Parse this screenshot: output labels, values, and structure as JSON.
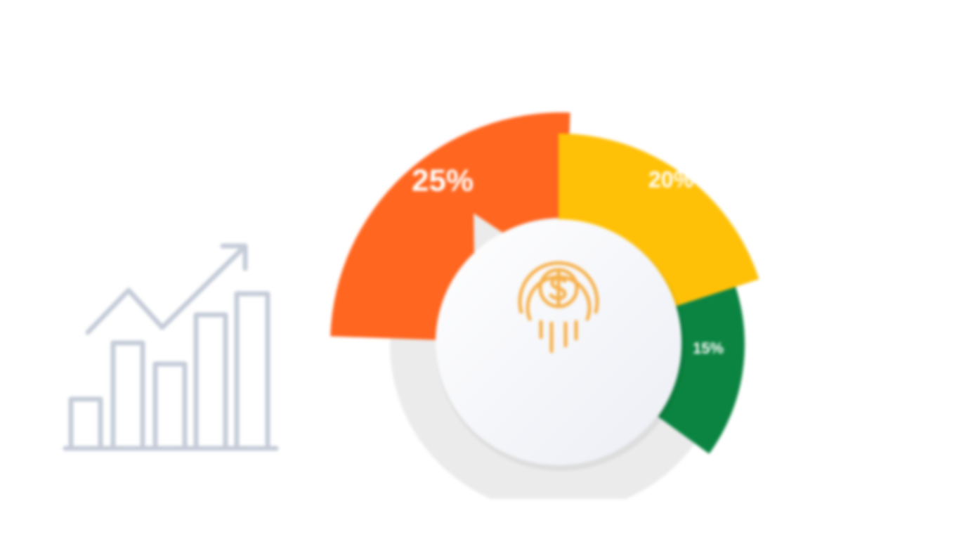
{
  "chart_data": {
    "type": "pie",
    "style": "donut",
    "title": "",
    "slices": [
      {
        "label": "25%",
        "value": 25,
        "color": "#FF6620"
      },
      {
        "label": "20%",
        "value": 20,
        "color": "#FFC107"
      },
      {
        "label": "15%",
        "value": 15,
        "color": "#0B8441"
      }
    ],
    "track_color": "#EBEBEB",
    "center_icon": "dollar-coin-icon",
    "center_icon_color": "#F6B04A",
    "side_icon": "bar-chart-trend-up-icon",
    "side_icon_color": "#C5CCD8"
  }
}
